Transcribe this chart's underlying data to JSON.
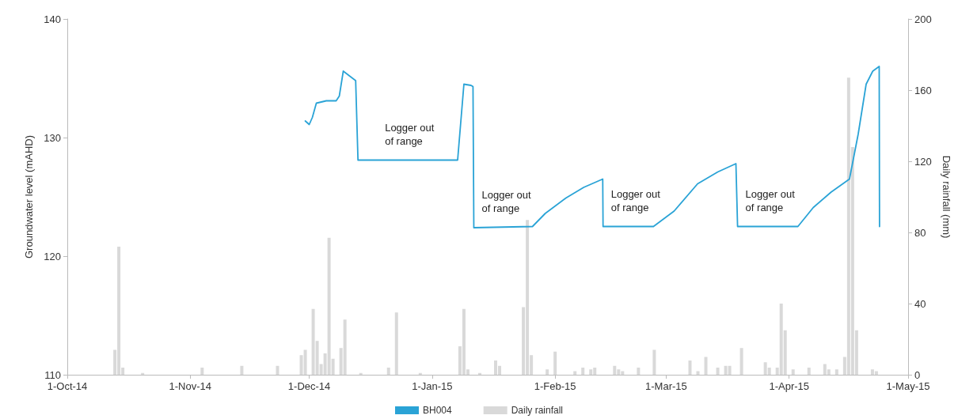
{
  "chart_data": {
    "type": "line",
    "xlim": [
      "2014-10-01",
      "2015-05-01"
    ],
    "xticks": [
      {
        "value": "2014-10-01",
        "label": "1-Oct-14"
      },
      {
        "value": "2014-11-01",
        "label": "1-Nov-14"
      },
      {
        "value": "2014-12-01",
        "label": "1-Dec-14"
      },
      {
        "value": "2015-01-01",
        "label": "1-Jan-15"
      },
      {
        "value": "2015-02-01",
        "label": "1-Feb-15"
      },
      {
        "value": "2015-03-01",
        "label": "1-Mar-15"
      },
      {
        "value": "2015-04-01",
        "label": "1-Apr-15"
      },
      {
        "value": "2015-05-01",
        "label": "1-May-15"
      }
    ],
    "ylabel": "Groundwater level (mAHD)",
    "y2label": "Daily rainfall (mm)",
    "ylim": [
      110,
      140
    ],
    "yticks": [
      110,
      120,
      130,
      140
    ],
    "y2lim": [
      0,
      200
    ],
    "y2ticks": [
      0,
      40,
      80,
      120,
      160,
      200
    ],
    "legend": "bottom",
    "series": [
      {
        "name": "BH004",
        "color": "#2aa3d6",
        "x": [
          "2014-11-30",
          "2014-12-01",
          "2014-12-01T19:00",
          "2014-12-02T19:00",
          "2014-12-05T07:00",
          "2014-12-07T19:00",
          "2014-12-08T14:00",
          "2014-12-09T14:00",
          "2014-12-12T17:00",
          "2014-12-13T07:00",
          "2015-01-07T10:00",
          "2015-01-09",
          "2015-01-10T19:00",
          "2015-01-11T07:00",
          "2015-01-11T12:00",
          "2015-01-26T07:00",
          "2015-01-29T12:00",
          "2015-02-03T17:00",
          "2015-02-08T05:00",
          "2015-02-13",
          "2015-02-13T02:00",
          "2015-02-25T19:00",
          "2015-03-03",
          "2015-03-08T22:00",
          "2015-03-14",
          "2015-03-18T14:00",
          "2015-03-19",
          "2015-04-03T05:00",
          "2015-04-07T02:00",
          "2015-04-11T14:00",
          "2015-04-16T05:00",
          "2015-04-18T10:00",
          "2015-04-20T10:00",
          "2015-04-22T02:00",
          "2015-04-23T17:00",
          "2015-04-23T19:00"
        ],
        "values": [
          131.4,
          131.1,
          131.7,
          132.9,
          133.1,
          133.1,
          133.5,
          135.6,
          134.8,
          128.1,
          128.1,
          134.5,
          134.4,
          134.3,
          122.4,
          122.5,
          123.6,
          124.9,
          125.8,
          126.5,
          122.5,
          122.5,
          123.8,
          126.1,
          127.1,
          127.8,
          122.5,
          122.5,
          124.1,
          125.4,
          126.5,
          130.3,
          134.5,
          135.6,
          136.0,
          122.5
        ]
      },
      {
        "name": "Daily rainfall",
        "type": "bar",
        "axis": "y2",
        "color": "#d9d9d9",
        "x": [
          "2014-10-13",
          "2014-10-14",
          "2014-10-15",
          "2014-10-20",
          "2014-11-04",
          "2014-11-14",
          "2014-11-23",
          "2014-11-29",
          "2014-11-30",
          "2014-12-02",
          "2014-12-03",
          "2014-12-04",
          "2014-12-05",
          "2014-12-06",
          "2014-12-07",
          "2014-12-09",
          "2014-12-10",
          "2014-12-14",
          "2014-12-21",
          "2014-12-23",
          "2014-12-29",
          "2015-01-08",
          "2015-01-09",
          "2015-01-10",
          "2015-01-13",
          "2015-01-17",
          "2015-01-18",
          "2015-01-24",
          "2015-01-25",
          "2015-01-26",
          "2015-01-30",
          "2015-02-01",
          "2015-02-06",
          "2015-02-08",
          "2015-02-10",
          "2015-02-11",
          "2015-02-16",
          "2015-02-17",
          "2015-02-18",
          "2015-02-22",
          "2015-02-26",
          "2015-03-07",
          "2015-03-09",
          "2015-03-11",
          "2015-03-14",
          "2015-03-16",
          "2015-03-17",
          "2015-03-20",
          "2015-03-26",
          "2015-03-27",
          "2015-03-29",
          "2015-03-30",
          "2015-03-31",
          "2015-04-02",
          "2015-04-06",
          "2015-04-10",
          "2015-04-11",
          "2015-04-13",
          "2015-04-15",
          "2015-04-16",
          "2015-04-17",
          "2015-04-18",
          "2015-04-22",
          "2015-04-23"
        ],
        "values": [
          14,
          72,
          4,
          1,
          4,
          5,
          5,
          11,
          14,
          37,
          19,
          6,
          12,
          77,
          9,
          15,
          31,
          1,
          4,
          35,
          1,
          16,
          37,
          3,
          1,
          8,
          5,
          38,
          87,
          11,
          3,
          13,
          2,
          4,
          3,
          4,
          5,
          3,
          2,
          4,
          14,
          8,
          2,
          10,
          4,
          5,
          5,
          15,
          7,
          4,
          4,
          40,
          25,
          3,
          4,
          6,
          3,
          3,
          10,
          167,
          128,
          25,
          3,
          2
        ]
      }
    ],
    "annotations": [
      "Logger out of range",
      "Logger out of range",
      "Logger out of range",
      "Logger out of range"
    ]
  }
}
